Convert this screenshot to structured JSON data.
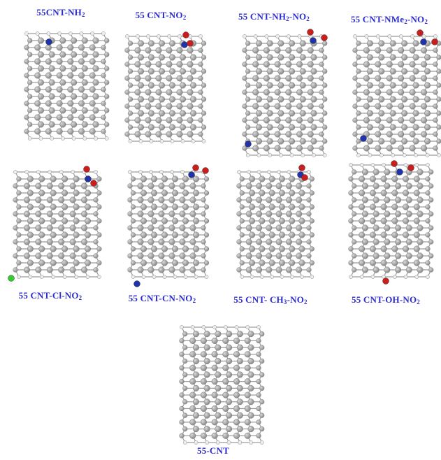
{
  "colors": {
    "label": "#2c2ccf",
    "carbon": "#8a8a8a",
    "carbon_highlight": "#d9d9d9",
    "hydrogen": "#ededed",
    "nitrogen": "#2233aa",
    "oxygen": "#c81e1e",
    "chlorine": "#33cc33",
    "bond": "#9a9a9a"
  },
  "molecules": [
    {
      "id": "nh2",
      "name_main": "55CNT-NH",
      "sub1": "2",
      "name_tail": "",
      "sub2": ""
    },
    {
      "id": "no2",
      "name_main": "55 CNT-NO",
      "sub1": "2",
      "name_tail": "",
      "sub2": ""
    },
    {
      "id": "nh2-no2",
      "name_main": "55 CNT-NH",
      "sub1": "2",
      "name_tail": "-NO",
      "sub2": "2"
    },
    {
      "id": "nme2-no2",
      "name_main": "55 CNT-NMe",
      "sub1": "2",
      "name_tail": "-NO",
      "sub2": "2"
    },
    {
      "id": "cl-no2",
      "name_main": "55 CNT-Cl-NO",
      "sub1": "2",
      "name_tail": "",
      "sub2": ""
    },
    {
      "id": "cn-no2",
      "name_main": "55 CNT-CN-NO",
      "sub1": "2",
      "name_tail": "",
      "sub2": ""
    },
    {
      "id": "ch3-no2",
      "name_main": "55 CNT- CH",
      "sub1": "3",
      "name_tail": "-NO",
      "sub2": "2"
    },
    {
      "id": "oh-no2",
      "name_main": "55 CNT-OH-NO",
      "sub1": "2",
      "name_tail": "",
      "sub2": ""
    },
    {
      "id": "pristine",
      "name_main": "55-CNT",
      "sub1": "",
      "name_tail": "",
      "sub2": ""
    }
  ]
}
